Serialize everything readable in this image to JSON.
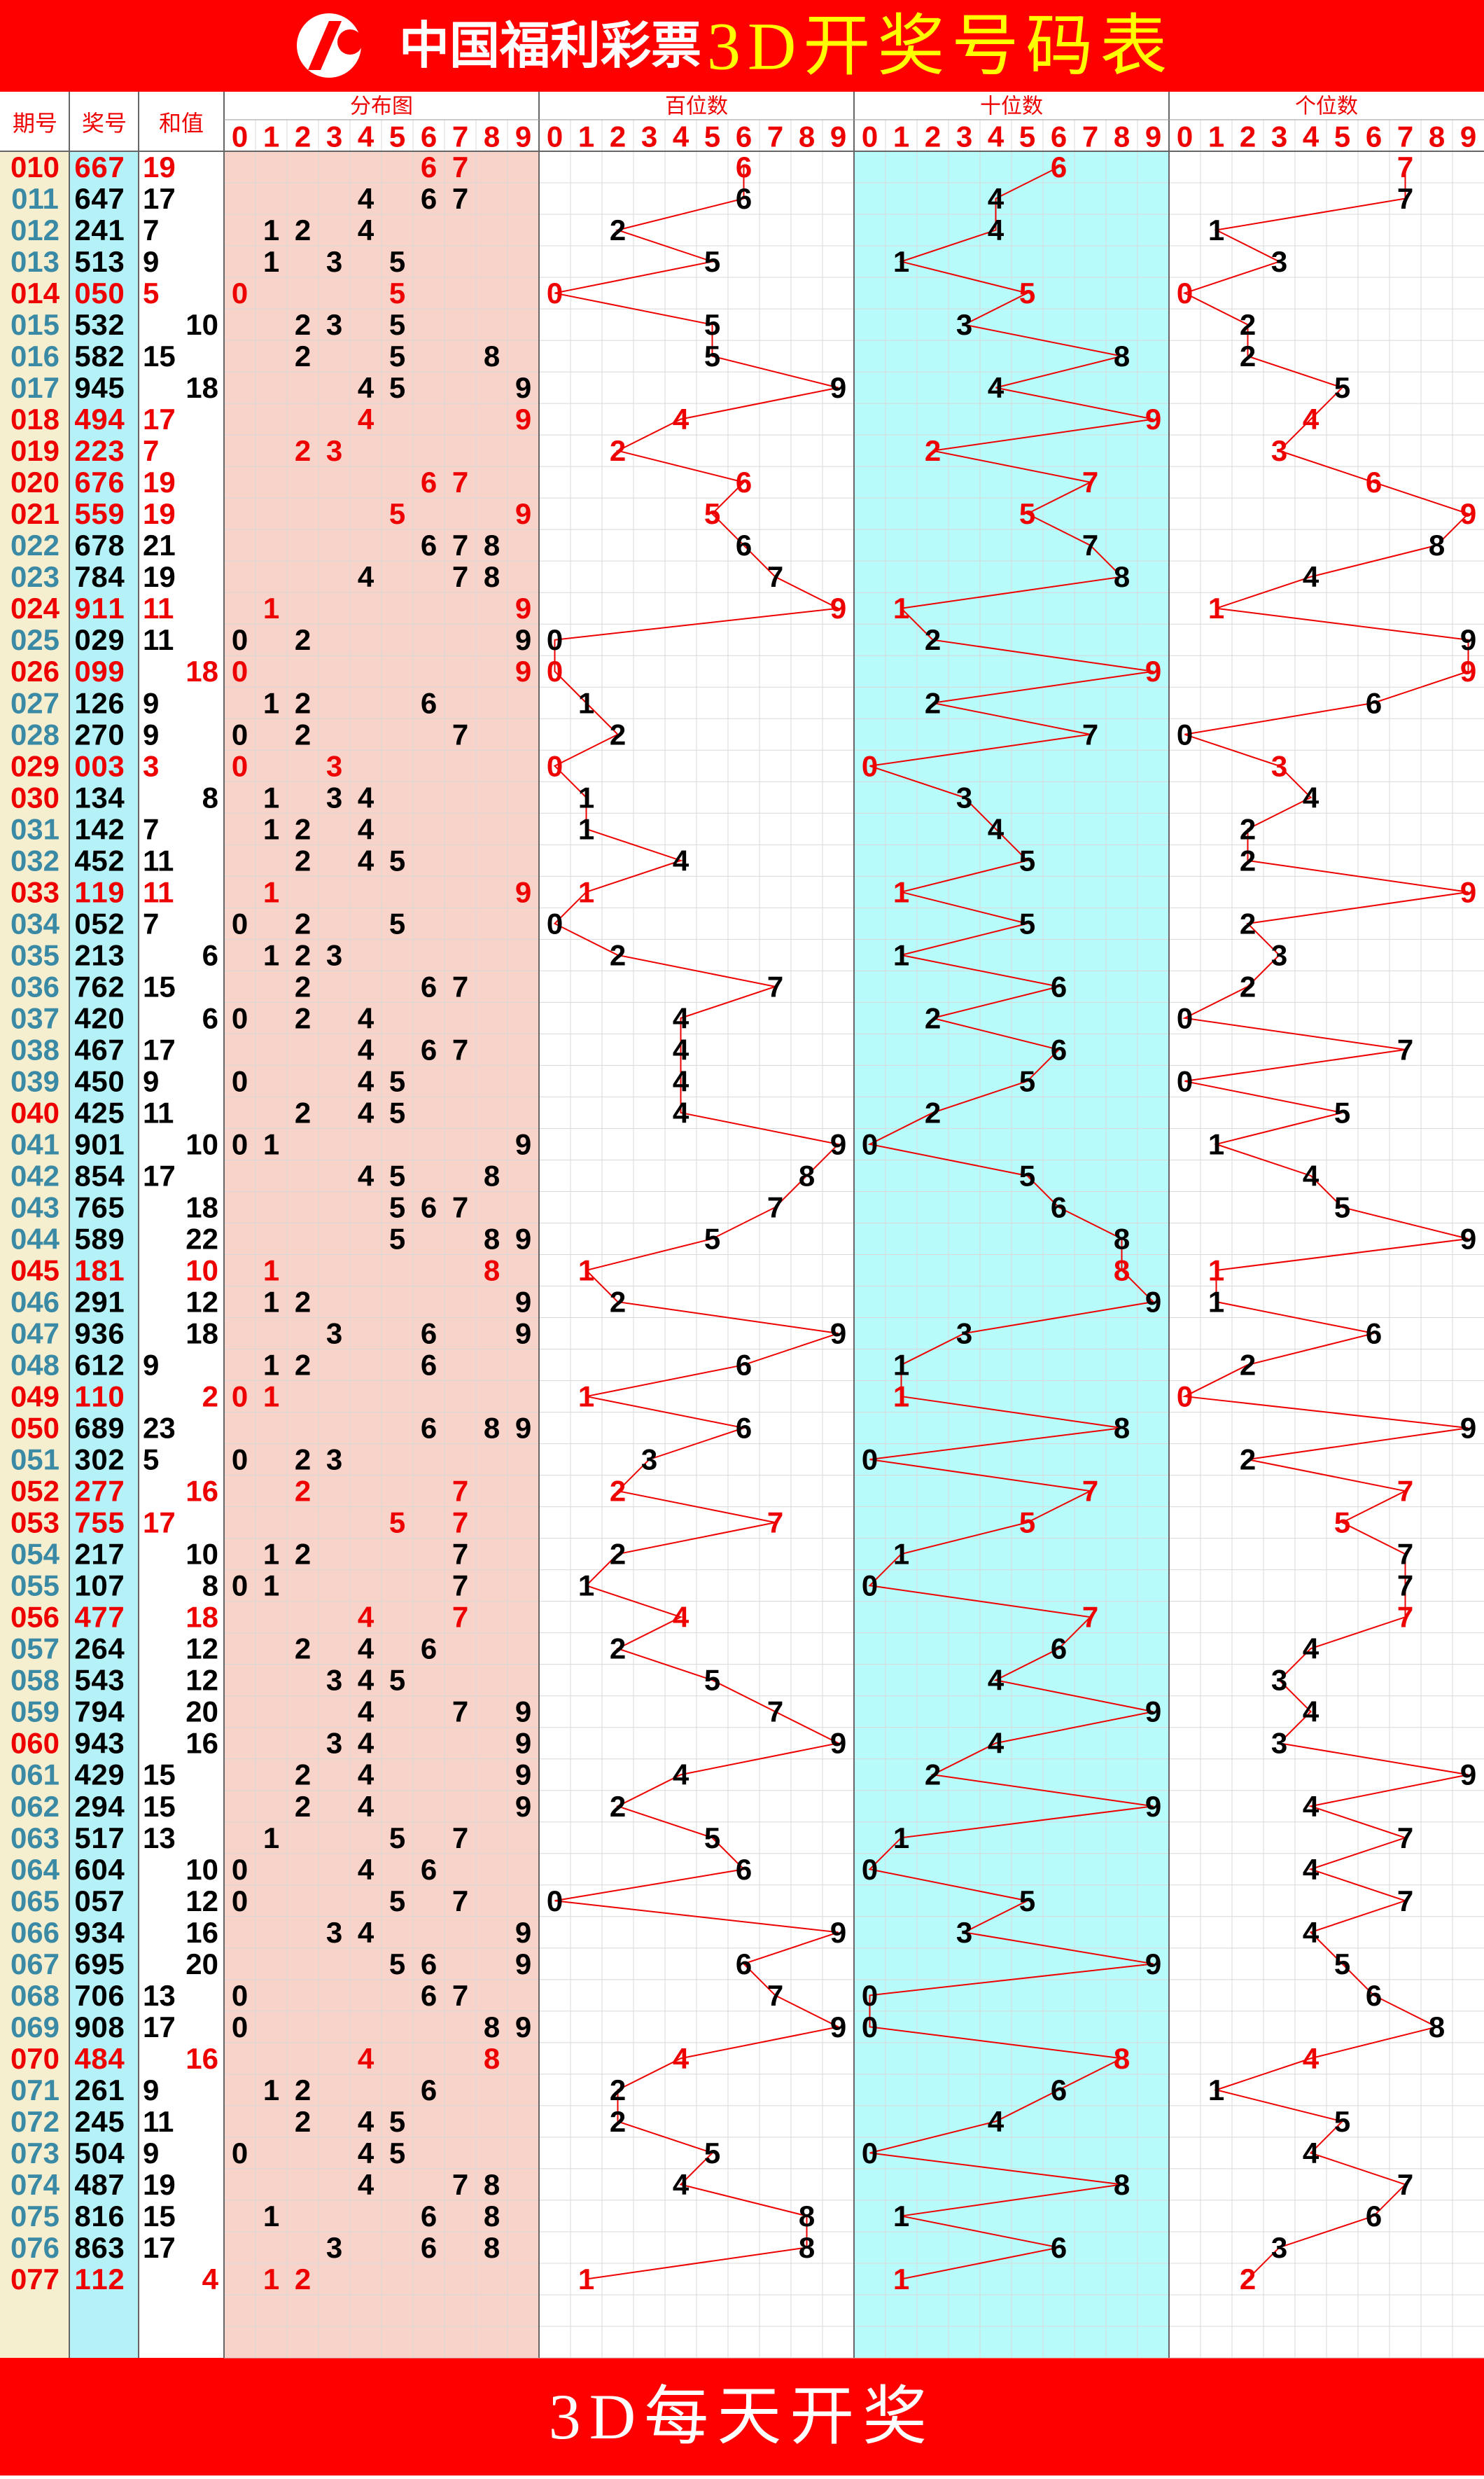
{
  "header": {
    "logo": "中国福利彩票",
    "title": "3D开奖号码表"
  },
  "columns": {
    "period": "期号",
    "number": "奖号",
    "sum": "和值",
    "distribution": "分布图",
    "hundreds": "百位数",
    "tens": "十位数",
    "units": "个位数"
  },
  "digit_labels": [
    0,
    1,
    2,
    3,
    4,
    5,
    6,
    7,
    8,
    9
  ],
  "rows": [
    {
      "period": "010",
      "digits": [
        6,
        6,
        7
      ],
      "sum": 19
    },
    {
      "period": "011",
      "digits": [
        6,
        4,
        7
      ],
      "sum": 17
    },
    {
      "period": "012",
      "digits": [
        2,
        4,
        1
      ],
      "sum": 7
    },
    {
      "period": "013",
      "digits": [
        5,
        1,
        3
      ],
      "sum": 9
    },
    {
      "period": "014",
      "digits": [
        0,
        5,
        0
      ],
      "sum": 5
    },
    {
      "period": "015",
      "digits": [
        5,
        3,
        2
      ],
      "sum": 10
    },
    {
      "period": "016",
      "digits": [
        5,
        8,
        2
      ],
      "sum": 15
    },
    {
      "period": "017",
      "digits": [
        9,
        4,
        5
      ],
      "sum": 18
    },
    {
      "period": "018",
      "digits": [
        4,
        9,
        4
      ],
      "sum": 17
    },
    {
      "period": "019",
      "digits": [
        2,
        2,
        3
      ],
      "sum": 7
    },
    {
      "period": "020",
      "digits": [
        6,
        7,
        6
      ],
      "sum": 19
    },
    {
      "period": "021",
      "digits": [
        5,
        5,
        9
      ],
      "sum": 19
    },
    {
      "period": "022",
      "digits": [
        6,
        7,
        8
      ],
      "sum": 21
    },
    {
      "period": "023",
      "digits": [
        7,
        8,
        4
      ],
      "sum": 19
    },
    {
      "period": "024",
      "digits": [
        9,
        1,
        1
      ],
      "sum": 11
    },
    {
      "period": "025",
      "digits": [
        0,
        2,
        9
      ],
      "sum": 11
    },
    {
      "period": "026",
      "digits": [
        0,
        9,
        9
      ],
      "sum": 18
    },
    {
      "period": "027",
      "digits": [
        1,
        2,
        6
      ],
      "sum": 9
    },
    {
      "period": "028",
      "digits": [
        2,
        7,
        0
      ],
      "sum": 9
    },
    {
      "period": "029",
      "digits": [
        0,
        0,
        3
      ],
      "sum": 3
    },
    {
      "period": "030",
      "digits": [
        1,
        3,
        4
      ],
      "sum": 8
    },
    {
      "period": "031",
      "digits": [
        1,
        4,
        2
      ],
      "sum": 7
    },
    {
      "period": "032",
      "digits": [
        4,
        5,
        2
      ],
      "sum": 11
    },
    {
      "period": "033",
      "digits": [
        1,
        1,
        9
      ],
      "sum": 11
    },
    {
      "period": "034",
      "digits": [
        0,
        5,
        2
      ],
      "sum": 7
    },
    {
      "period": "035",
      "digits": [
        2,
        1,
        3
      ],
      "sum": 6
    },
    {
      "period": "036",
      "digits": [
        7,
        6,
        2
      ],
      "sum": 15
    },
    {
      "period": "037",
      "digits": [
        4,
        2,
        0
      ],
      "sum": 6
    },
    {
      "period": "038",
      "digits": [
        4,
        6,
        7
      ],
      "sum": 17
    },
    {
      "period": "039",
      "digits": [
        4,
        5,
        0
      ],
      "sum": 9
    },
    {
      "period": "040",
      "digits": [
        4,
        2,
        5
      ],
      "sum": 11
    },
    {
      "period": "041",
      "digits": [
        9,
        0,
        1
      ],
      "sum": 10
    },
    {
      "period": "042",
      "digits": [
        8,
        5,
        4
      ],
      "sum": 17
    },
    {
      "period": "043",
      "digits": [
        7,
        6,
        5
      ],
      "sum": 18
    },
    {
      "period": "044",
      "digits": [
        5,
        8,
        9
      ],
      "sum": 22
    },
    {
      "period": "045",
      "digits": [
        1,
        8,
        1
      ],
      "sum": 10
    },
    {
      "period": "046",
      "digits": [
        2,
        9,
        1
      ],
      "sum": 12
    },
    {
      "period": "047",
      "digits": [
        9,
        3,
        6
      ],
      "sum": 18
    },
    {
      "period": "048",
      "digits": [
        6,
        1,
        2
      ],
      "sum": 9
    },
    {
      "period": "049",
      "digits": [
        1,
        1,
        0
      ],
      "sum": 2
    },
    {
      "period": "050",
      "digits": [
        6,
        8,
        9
      ],
      "sum": 23
    },
    {
      "period": "051",
      "digits": [
        3,
        0,
        2
      ],
      "sum": 5
    },
    {
      "period": "052",
      "digits": [
        2,
        7,
        7
      ],
      "sum": 16
    },
    {
      "period": "053",
      "digits": [
        7,
        5,
        5
      ],
      "sum": 17
    },
    {
      "period": "054",
      "digits": [
        2,
        1,
        7
      ],
      "sum": 10
    },
    {
      "period": "055",
      "digits": [
        1,
        0,
        7
      ],
      "sum": 8
    },
    {
      "period": "056",
      "digits": [
        4,
        7,
        7
      ],
      "sum": 18
    },
    {
      "period": "057",
      "digits": [
        2,
        6,
        4
      ],
      "sum": 12
    },
    {
      "period": "058",
      "digits": [
        5,
        4,
        3
      ],
      "sum": 12
    },
    {
      "period": "059",
      "digits": [
        7,
        9,
        4
      ],
      "sum": 20
    },
    {
      "period": "060",
      "digits": [
        9,
        4,
        3
      ],
      "sum": 16
    },
    {
      "period": "061",
      "digits": [
        4,
        2,
        9
      ],
      "sum": 15
    },
    {
      "period": "062",
      "digits": [
        2,
        9,
        4
      ],
      "sum": 15
    },
    {
      "period": "063",
      "digits": [
        5,
        1,
        7
      ],
      "sum": 13
    },
    {
      "period": "064",
      "digits": [
        6,
        0,
        4
      ],
      "sum": 10
    },
    {
      "period": "065",
      "digits": [
        0,
        5,
        7
      ],
      "sum": 12
    },
    {
      "period": "066",
      "digits": [
        9,
        3,
        4
      ],
      "sum": 16
    },
    {
      "period": "067",
      "digits": [
        6,
        9,
        5
      ],
      "sum": 20
    },
    {
      "period": "068",
      "digits": [
        7,
        0,
        6
      ],
      "sum": 13
    },
    {
      "period": "069",
      "digits": [
        9,
        0,
        8
      ],
      "sum": 17
    },
    {
      "period": "070",
      "digits": [
        4,
        8,
        4
      ],
      "sum": 16
    },
    {
      "period": "071",
      "digits": [
        2,
        6,
        1
      ],
      "sum": 9
    },
    {
      "period": "072",
      "digits": [
        2,
        4,
        5
      ],
      "sum": 11
    },
    {
      "period": "073",
      "digits": [
        5,
        0,
        4
      ],
      "sum": 9
    },
    {
      "period": "074",
      "digits": [
        4,
        8,
        7
      ],
      "sum": 19
    },
    {
      "period": "075",
      "digits": [
        8,
        1,
        6
      ],
      "sum": 15
    },
    {
      "period": "076",
      "digits": [
        8,
        6,
        3
      ],
      "sum": 17
    },
    {
      "period": "077",
      "digits": [
        1,
        1,
        2
      ],
      "sum": 4
    }
  ],
  "footer": "3D每天开奖"
}
